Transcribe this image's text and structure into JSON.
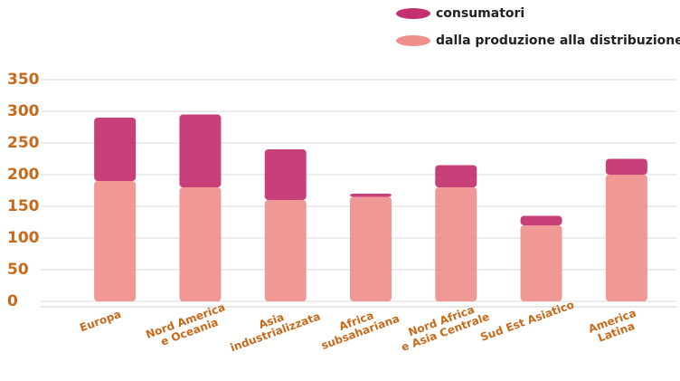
{
  "chart_data": {
    "type": "bar",
    "stacked": true,
    "categories": [
      "Europa",
      "Nord America\ne Oceania",
      "Asia\nindustrializzata",
      "Africa\nsubsahariana",
      "Nord Africa\ne Asia Centrale",
      "Sud Est Asiatico",
      "America Latina"
    ],
    "series": [
      {
        "name": "dalla produzione alla distribuzione",
        "color": "#ee8f8c",
        "values": [
          190,
          180,
          160,
          165,
          180,
          120,
          200
        ]
      },
      {
        "name": "consumatori",
        "color": "#c2306e",
        "values": [
          100,
          115,
          80,
          5,
          35,
          15,
          25
        ]
      }
    ],
    "ylim": [
      0,
      350
    ],
    "yticks": [
      0,
      50,
      100,
      150,
      200,
      250,
      300,
      350
    ],
    "grid": true,
    "legend": "top-right"
  }
}
